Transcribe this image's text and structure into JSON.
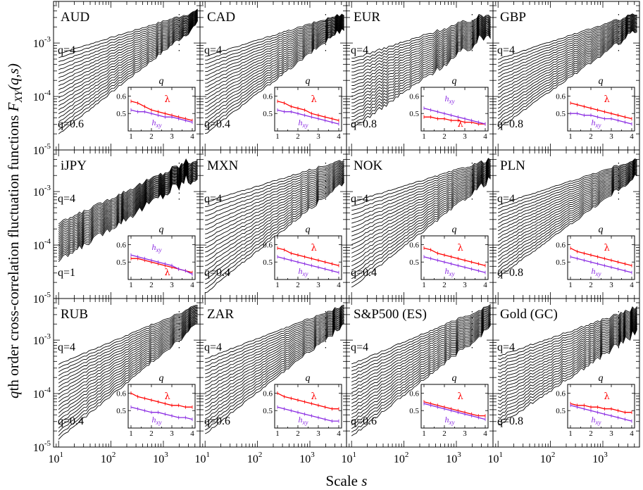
{
  "figure": {
    "ylabel_prefix": "q",
    "ylabel_main": "th order cross-correlation fluctuation functions ",
    "ylabel_F": "F",
    "ylabel_sub": "XY",
    "ylabel_args": "(q,s)",
    "xlabel_main": "Scale ",
    "xlabel_var": "s"
  },
  "chart_data": {
    "type": "line",
    "layout": "3x4 panels with shared axes",
    "x_scale": "log",
    "y_scale": "log",
    "xlim": [
      8,
      5000
    ],
    "ylim": [
      1e-05,
      0.006
    ],
    "x_ticks": [
      {
        "base": "10",
        "exp": "1",
        "value": 10
      },
      {
        "base": "10",
        "exp": "2",
        "value": 100
      },
      {
        "base": "10",
        "exp": "3",
        "value": 1000
      }
    ],
    "y_ticks": [
      {
        "base": "10",
        "exp": "-5",
        "value": 1e-05
      },
      {
        "base": "10",
        "exp": "-4",
        "value": 0.0001
      },
      {
        "base": "10",
        "exp": "-3",
        "value": 0.001
      }
    ],
    "q_range": [
      0.4,
      4
    ],
    "inset": {
      "x_label": "q",
      "x_ticks": [
        "1",
        "2",
        "3",
        "4"
      ],
      "y_ticks": [
        "0.5",
        "0.6"
      ],
      "ylim": [
        0.4,
        0.65
      ],
      "series": [
        {
          "name": "λ",
          "color": "#ff0000"
        },
        {
          "name": "h",
          "sub": "xy",
          "color": "#8a2be2"
        }
      ]
    },
    "panels": [
      {
        "name": "AUD",
        "q_top": "q=4",
        "q_bottom": "q=0.6",
        "curves": {
          "hi_lo": -3.2,
          "lo_lo": -4.7,
          "hi_hi": -2.4,
          "lo_hi": -2.65
        },
        "noise": 0.02,
        "inset": {
          "lambda": [
            0.57,
            0.56,
            0.54,
            0.52,
            0.51,
            0.5,
            0.49,
            0.48,
            0.47,
            0.46
          ],
          "hxy": [
            0.52,
            0.51,
            0.51,
            0.5,
            0.49,
            0.48,
            0.48,
            0.47,
            0.46,
            0.45
          ]
        },
        "inset_labels": {
          "lambda": "top",
          "hxy": "bottom"
        }
      },
      {
        "name": "CAD",
        "q_top": "q=4",
        "q_bottom": "q=0.4",
        "curves": {
          "hi_lo": -3.25,
          "lo_lo": -4.7,
          "hi_hi": -2.45,
          "lo_hi": -2.7
        },
        "noise": 0.02,
        "inset": {
          "lambda": [
            0.57,
            0.56,
            0.54,
            0.53,
            0.52,
            0.5,
            0.49,
            0.48,
            0.47,
            0.46
          ],
          "hxy": [
            0.52,
            0.51,
            0.51,
            0.5,
            0.49,
            0.48,
            0.47,
            0.46,
            0.45,
            0.44
          ]
        },
        "inset_labels": {
          "lambda": "top",
          "hxy": "bottom"
        }
      },
      {
        "name": "EUR",
        "q_top": "q=4",
        "q_bottom": "q=0.8",
        "curves": {
          "hi_lo": -3.3,
          "lo_lo": -4.6,
          "hi_hi": -2.45,
          "lo_hi": -2.8
        },
        "noise": 0.04,
        "inset": {
          "lambda": [
            0.48,
            0.48,
            0.47,
            0.47,
            0.46,
            0.46,
            0.45,
            0.45,
            0.44,
            0.44
          ],
          "hxy": [
            0.53,
            0.52,
            0.51,
            0.5,
            0.49,
            0.48,
            0.47,
            0.46,
            0.45,
            0.44
          ]
        },
        "inset_labels": {
          "lambda": "bottom",
          "hxy": "top"
        }
      },
      {
        "name": "GBP",
        "q_top": "q=4",
        "q_bottom": "q=0.8",
        "curves": {
          "hi_lo": -3.3,
          "lo_lo": -4.6,
          "hi_hi": -2.45,
          "lo_hi": -2.75
        },
        "noise": 0.02,
        "inset": {
          "lambda": [
            0.56,
            0.55,
            0.54,
            0.53,
            0.52,
            0.51,
            0.5,
            0.49,
            0.48,
            0.47
          ],
          "hxy": [
            0.5,
            0.5,
            0.49,
            0.49,
            0.48,
            0.47,
            0.47,
            0.46,
            0.45,
            0.44
          ]
        },
        "inset_labels": {
          "lambda": "top",
          "hxy": "bottom"
        }
      },
      {
        "name": "iJPY",
        "q_top": "q=4",
        "q_bottom": "q=1",
        "curves": {
          "hi_lo": -3.6,
          "lo_lo": -4.3,
          "hi_hi": -2.35,
          "lo_hi": -2.65
        },
        "noise": 0.06,
        "inset": {
          "lambda": [
            0.52,
            0.52,
            0.51,
            0.5,
            0.49,
            0.48,
            0.47,
            0.46,
            0.45,
            0.44
          ],
          "hxy": [
            0.54,
            0.53,
            0.52,
            0.51,
            0.5,
            0.49,
            0.48,
            0.46,
            0.45,
            0.43
          ]
        },
        "inset_labels": {
          "lambda": "bottom",
          "hxy": "top"
        }
      },
      {
        "name": "MXN",
        "q_top": "q=4",
        "q_bottom": "q=0.4",
        "curves": {
          "hi_lo": -3.2,
          "lo_lo": -4.9,
          "hi_hi": -2.4,
          "lo_hi": -2.8
        },
        "noise": 0.02,
        "inset": {
          "lambda": [
            0.58,
            0.57,
            0.55,
            0.54,
            0.53,
            0.52,
            0.51,
            0.5,
            0.49,
            0.48
          ],
          "hxy": [
            0.53,
            0.52,
            0.51,
            0.5,
            0.49,
            0.48,
            0.47,
            0.46,
            0.45,
            0.44
          ]
        },
        "inset_labels": {
          "lambda": "top",
          "hxy": "bottom"
        }
      },
      {
        "name": "NOK",
        "q_top": "q=4",
        "q_bottom": "q=0.4",
        "curves": {
          "hi_lo": -3.2,
          "lo_lo": -4.8,
          "hi_hi": -2.4,
          "lo_hi": -2.75
        },
        "noise": 0.02,
        "inset": {
          "lambda": [
            0.58,
            0.57,
            0.55,
            0.54,
            0.53,
            0.52,
            0.51,
            0.5,
            0.49,
            0.48
          ],
          "hxy": [
            0.53,
            0.52,
            0.51,
            0.5,
            0.49,
            0.48,
            0.47,
            0.46,
            0.45,
            0.44
          ]
        },
        "inset_labels": {
          "lambda": "top",
          "hxy": "bottom"
        }
      },
      {
        "name": "PLN",
        "q_top": "q=4",
        "q_bottom": "q=0.8",
        "curves": {
          "hi_lo": -3.25,
          "lo_lo": -4.6,
          "hi_hi": -2.4,
          "lo_hi": -2.7
        },
        "noise": 0.02,
        "inset": {
          "lambda": [
            0.58,
            0.56,
            0.55,
            0.54,
            0.53,
            0.52,
            0.51,
            0.5,
            0.49,
            0.48
          ],
          "hxy": [
            0.53,
            0.52,
            0.51,
            0.5,
            0.49,
            0.48,
            0.47,
            0.46,
            0.45,
            0.44
          ]
        },
        "inset_labels": {
          "lambda": "top",
          "hxy": "bottom"
        }
      },
      {
        "name": "RUB",
        "q_top": "q=4",
        "q_bottom": "q=0.4",
        "curves": {
          "hi_lo": -3.45,
          "lo_lo": -4.85,
          "hi_hi": -2.35,
          "lo_hi": -2.7
        },
        "noise": 0.02,
        "inset": {
          "lambda": [
            0.6,
            0.58,
            0.57,
            0.56,
            0.55,
            0.54,
            0.53,
            0.53,
            0.52,
            0.52
          ],
          "hxy": [
            0.52,
            0.51,
            0.5,
            0.49,
            0.49,
            0.48,
            0.47,
            0.46,
            0.46,
            0.45
          ]
        },
        "inset_labels": {
          "lambda": "top",
          "hxy": "bottom"
        }
      },
      {
        "name": "ZAR",
        "q_top": "q=4",
        "q_bottom": "q=0.6",
        "curves": {
          "hi_lo": -3.35,
          "lo_lo": -4.75,
          "hi_hi": -2.35,
          "lo_hi": -2.7
        },
        "noise": 0.02,
        "inset": {
          "lambda": [
            0.6,
            0.58,
            0.57,
            0.56,
            0.55,
            0.54,
            0.53,
            0.52,
            0.51,
            0.51
          ],
          "hxy": [
            0.52,
            0.51,
            0.5,
            0.49,
            0.48,
            0.47,
            0.46,
            0.45,
            0.44,
            0.44
          ]
        },
        "inset_labels": {
          "lambda": "top",
          "hxy": "bottom"
        }
      },
      {
        "name": "S&P500 (ES)",
        "q_top": "q=4",
        "q_bottom": "q=0.6",
        "curves": {
          "hi_lo": -3.45,
          "lo_lo": -4.8,
          "hi_hi": -2.35,
          "lo_hi": -2.75
        },
        "noise": 0.025,
        "inset": {
          "lambda": [
            0.55,
            0.54,
            0.53,
            0.52,
            0.51,
            0.5,
            0.49,
            0.48,
            0.47,
            0.47
          ],
          "hxy": [
            0.54,
            0.53,
            0.52,
            0.51,
            0.5,
            0.49,
            0.48,
            0.47,
            0.46,
            0.45
          ]
        },
        "inset_labels": {
          "lambda": "top",
          "hxy": "bottom"
        }
      },
      {
        "name": "Gold (GC)",
        "q_top": "q=4",
        "q_bottom": "q=0.8",
        "curves": {
          "hi_lo": -3.3,
          "lo_lo": -4.6,
          "hi_hi": -2.4,
          "lo_hi": -2.85
        },
        "noise": 0.03,
        "inset": {
          "lambda": [
            0.54,
            0.53,
            0.53,
            0.52,
            0.52,
            0.51,
            0.51,
            0.5,
            0.49,
            0.49
          ],
          "hxy": [
            0.53,
            0.52,
            0.51,
            0.5,
            0.49,
            0.48,
            0.47,
            0.46,
            0.45,
            0.44
          ]
        },
        "inset_labels": {
          "lambda": "top",
          "hxy": "bottom"
        }
      }
    ]
  }
}
